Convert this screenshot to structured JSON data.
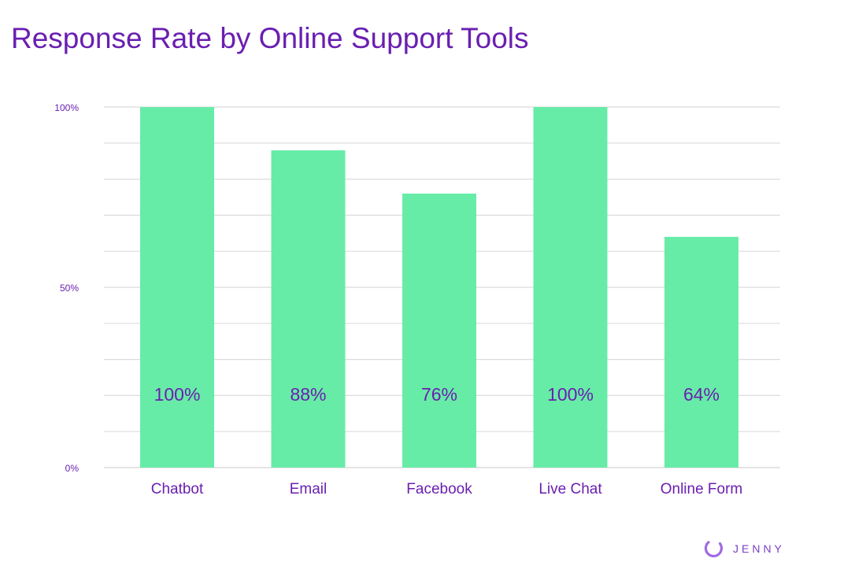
{
  "title": "Response Rate by Online Support Tools",
  "brand": {
    "name": "JENNY",
    "icon": "jenny-logo-icon"
  },
  "colors": {
    "bar": "#67eca7",
    "title": "#6a1fb0",
    "axis_text": "#6a1fb0",
    "grid": "#dcdcdc",
    "logo": "#a06be0"
  },
  "chart_data": {
    "type": "bar",
    "title": "Response Rate by Online Support Tools",
    "categories": [
      "Chatbot",
      "Email",
      "Facebook",
      "Live Chat",
      "Online Form"
    ],
    "values": [
      100,
      88,
      76,
      100,
      64
    ],
    "data_labels": [
      "100%",
      "88%",
      "76%",
      "100%",
      "64%"
    ],
    "ylim": [
      0,
      100
    ],
    "yticks": [
      0,
      50,
      100
    ],
    "ytick_labels": [
      "0%",
      "50%",
      "100%"
    ],
    "grid": true,
    "legend": "none",
    "xlabel": "",
    "ylabel": ""
  }
}
